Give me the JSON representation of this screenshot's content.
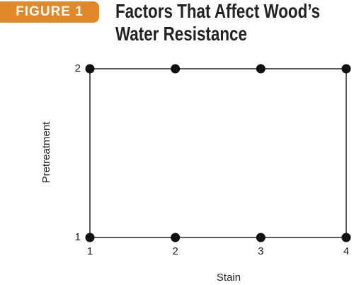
{
  "chart_data": {
    "type": "scatter",
    "label": "FIGURE 1",
    "title": "Factors That Affect Wood’s Water Resistance",
    "xlabel": "Stain",
    "ylabel": "Pretreatment",
    "series": [
      {
        "color": "#111111",
        "x": [
          1,
          2,
          3,
          4,
          1,
          2,
          3,
          4
        ],
        "values": [
          2,
          2,
          2,
          2,
          1,
          1,
          1,
          1
        ]
      }
    ],
    "xlim": [
      1,
      4
    ],
    "ylim": [
      1,
      2
    ],
    "xticks": [
      1,
      2,
      3,
      4
    ],
    "yticks": [
      1,
      2
    ],
    "grid": false
  }
}
